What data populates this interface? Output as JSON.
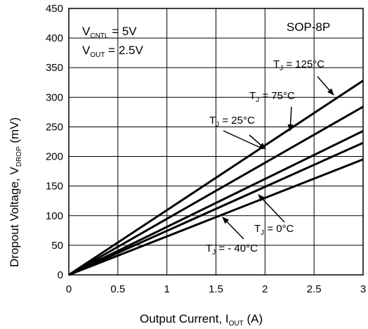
{
  "chart_data": {
    "type": "line",
    "title": "",
    "xlabel": {
      "main": "Output Current, I",
      "sub": "OUT",
      "tail": " (A)"
    },
    "ylabel": {
      "main": "Dropout Voltage, V",
      "sub": "DROP",
      "tail": " (mV)"
    },
    "xlim": [
      0,
      3
    ],
    "ylim": [
      0,
      450
    ],
    "xticks": [
      0,
      0.5,
      1,
      1.5,
      2,
      2.5,
      3
    ],
    "xtick_labels": [
      "0",
      "0.5",
      "1",
      "1.5",
      "2",
      "2.5",
      "3"
    ],
    "yticks": [
      0,
      50,
      100,
      150,
      200,
      250,
      300,
      350,
      400,
      450
    ],
    "ytick_labels": [
      "0",
      "50",
      "100",
      "150",
      "200",
      "250",
      "300",
      "350",
      "400",
      "450"
    ],
    "grid": true,
    "conditions": [
      {
        "main": "V",
        "sub": "CNTL",
        "tail": " = 5V"
      },
      {
        "main": "V",
        "sub": "OUT",
        "tail": " = 2.5V"
      }
    ],
    "package_label": "SOP-8P",
    "series": [
      {
        "name": "T_J = 125°C",
        "x": [
          0,
          3
        ],
        "y": [
          0,
          328
        ]
      },
      {
        "name": "T_J = 75°C",
        "x": [
          0,
          3
        ],
        "y": [
          0,
          284
        ]
      },
      {
        "name": "T_J = 25°C",
        "x": [
          0,
          3
        ],
        "y": [
          0,
          243
        ]
      },
      {
        "name": "T_J = 0°C",
        "x": [
          0,
          3
        ],
        "y": [
          0,
          223
        ]
      },
      {
        "name": "T_J = - 40°C",
        "x": [
          0,
          3
        ],
        "y": [
          0,
          195
        ]
      }
    ],
    "annotations": [
      {
        "main": "T",
        "sub": "J",
        "tail": " = 125°C"
      },
      {
        "main": "T",
        "sub": "J",
        "tail": " = 75°C"
      },
      {
        "main": "T",
        "sub": "J",
        "tail": " = 25°C"
      },
      {
        "main": "T",
        "sub": "J",
        "tail": " = 0°C"
      },
      {
        "main": "T",
        "sub": "J",
        "tail": " = - 40°C"
      }
    ]
  }
}
